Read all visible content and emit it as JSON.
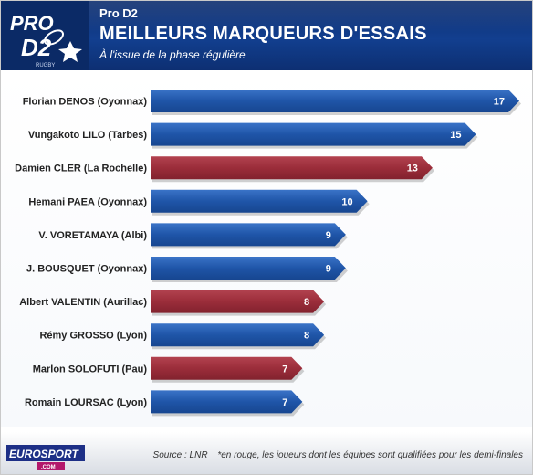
{
  "header": {
    "competition": "Pro D2",
    "title": "MEILLEURS MARQUEURS D'ESSAIS",
    "subtitle": "À l'issue de la phase régulière",
    "logo_text_top": "PRO",
    "logo_text_bottom": "D2",
    "logo_small_text": "RUGBY"
  },
  "colors": {
    "header_blue": "#123f8f",
    "bar_blue": "#1f55a8",
    "bar_red": "#9b2d3a"
  },
  "chart_data": {
    "type": "bar",
    "orientation": "horizontal",
    "categories": [
      "Florian DENOS (Oyonnax)",
      "Vungakoto LILO (Tarbes)",
      "Damien CLER (La Rochelle)",
      "Hemani PAEA (Oyonnax)",
      "V. VORETAMAYA (Albi)",
      "J. BOUSQUET (Oyonnax)",
      "Albert VALENTIN (Aurillac)",
      "Rémy GROSSO (Lyon)",
      "Marlon SOLOFUTI (Pau)",
      "Romain LOURSAC (Lyon)"
    ],
    "values": [
      17,
      15,
      13,
      10,
      9,
      9,
      8,
      8,
      7,
      7
    ],
    "qualified_team": [
      false,
      false,
      true,
      false,
      false,
      false,
      true,
      false,
      true,
      false
    ],
    "xlim": [
      0,
      17
    ],
    "grid": false,
    "legend": "none"
  },
  "footer": {
    "source": "Source : LNR",
    "note": "*en rouge, les joueurs dont les équipes sont qualifiées pour les demi-finales",
    "brand": "EUROSPORT",
    "brand_suffix": ".COM"
  }
}
